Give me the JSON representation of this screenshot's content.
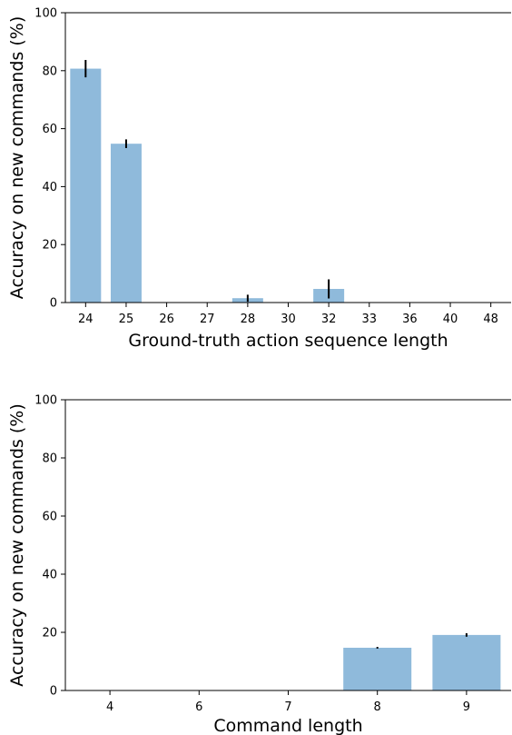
{
  "chart_data": [
    {
      "type": "bar",
      "xlabel": "Ground-truth action sequence length",
      "ylabel": "Accuracy on new commands (%)",
      "ylim": [
        0,
        100
      ],
      "yticks": [
        0,
        20,
        40,
        60,
        80,
        100
      ],
      "categories": [
        "24",
        "25",
        "26",
        "27",
        "28",
        "30",
        "32",
        "33",
        "36",
        "40",
        "48"
      ],
      "values": [
        80.7,
        54.8,
        0,
        0,
        1.5,
        0,
        4.7,
        0,
        0,
        0,
        0
      ],
      "errors": [
        3.0,
        1.5,
        0,
        0,
        1.2,
        0,
        3.3,
        0,
        0,
        0,
        0
      ],
      "bar_color": "#8fbadb",
      "error_color": "#000000",
      "grid": false
    },
    {
      "type": "bar",
      "xlabel": "Command length",
      "ylabel": "Accuracy on new commands (%)",
      "ylim": [
        0,
        100
      ],
      "yticks": [
        0,
        20,
        40,
        60,
        80,
        100
      ],
      "categories": [
        "4",
        "6",
        "7",
        "8",
        "9"
      ],
      "values": [
        0,
        0,
        0,
        14.7,
        19.1
      ],
      "errors": [
        0,
        0,
        0,
        0.3,
        0.6
      ],
      "bar_color": "#8fbadb",
      "error_color": "#000000",
      "grid": false
    }
  ]
}
